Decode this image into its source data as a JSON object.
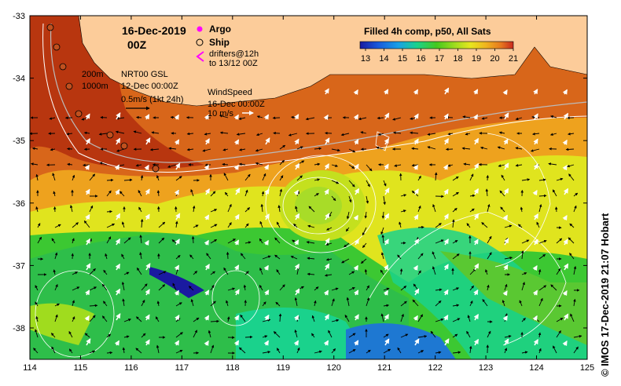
{
  "map": {
    "date_title": "16-Dec-2019",
    "time_title": "00Z",
    "legend": {
      "argo": "Argo",
      "ship": "Ship",
      "drifters_line1": "drifters@12h",
      "drifters_line2": "to 13/12 00Z"
    },
    "isobaths": [
      "200m",
      "1000m"
    ],
    "currents": {
      "product": "NRT00 GSL",
      "time": "12-Dec 00:00Z",
      "scale": "0.5m/s (1kt 24h)"
    },
    "wind": {
      "label": "WindSpeed",
      "time": "16-Dec 00:00Z",
      "scale": "10 m/s"
    },
    "colorbar": {
      "title": "Filled 4h comp, p50, All Sats",
      "ticks": [
        "13",
        "14",
        "15",
        "16",
        "17",
        "18",
        "19",
        "20",
        "21"
      ],
      "colors": [
        "#1a1aa0",
        "#1a5adc",
        "#1aa0e6",
        "#1ad28c",
        "#46c81e",
        "#a0dc1e",
        "#e6e61e",
        "#f0b41e",
        "#e6781e",
        "#c8281e"
      ]
    },
    "lon_ticks": [
      "114",
      "115",
      "116",
      "117",
      "118",
      "119",
      "120",
      "121",
      "122",
      "123",
      "124",
      "125"
    ],
    "lat_ticks": [
      "-33",
      "-34",
      "-35",
      "-36",
      "-37",
      "-38"
    ],
    "credit": "© IMOS 17-Dec-2019 21:07 Hobart",
    "colors": {
      "land": "#fccc9a",
      "warm_coast": "#b8360f",
      "orange": "#e8821e",
      "yellow": "#e0e41e",
      "green": "#3cc832",
      "blue": "#1e78d2"
    }
  }
}
